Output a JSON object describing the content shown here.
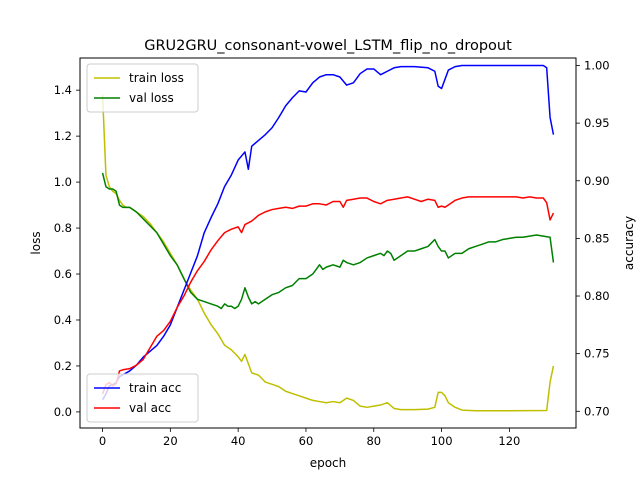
{
  "chart_data": {
    "type": "line",
    "title": "GRU2GRU_consonant-vowel_LSTM_flip_no_dropout",
    "xlabel": "epoch",
    "ylabel_left": "loss",
    "ylabel_right": "accuracy",
    "xlim": [
      -6.65,
      139.65
    ],
    "ylim_left": [
      -0.07,
      1.54
    ],
    "ylim_right": [
      0.6855,
      1.0065
    ],
    "x_ticks": [
      0,
      20,
      40,
      60,
      80,
      100,
      120
    ],
    "y_ticks_left": [
      0.0,
      0.2,
      0.4,
      0.6,
      0.8,
      1.0,
      1.2,
      1.4
    ],
    "y_ticks_right": [
      0.7,
      0.75,
      0.8,
      0.85,
      0.9,
      0.95,
      1.0
    ],
    "grid": false,
    "legend_left_placement": "upper-left",
    "legend_right_placement": "lower-left",
    "series": [
      {
        "name": "train loss",
        "axis": "left",
        "color": "#bfbf00",
        "points": [
          [
            0,
            1.38
          ],
          [
            1,
            1.03
          ],
          [
            2,
            0.98
          ],
          [
            3,
            0.96
          ],
          [
            4,
            0.95
          ],
          [
            5,
            0.92
          ],
          [
            6,
            0.9
          ],
          [
            7,
            0.89
          ],
          [
            8,
            0.89
          ],
          [
            9,
            0.88
          ],
          [
            10,
            0.87
          ],
          [
            12,
            0.85
          ],
          [
            14,
            0.82
          ],
          [
            16,
            0.78
          ],
          [
            18,
            0.74
          ],
          [
            20,
            0.69
          ],
          [
            22,
            0.64
          ],
          [
            24,
            0.58
          ],
          [
            26,
            0.53
          ],
          [
            28,
            0.49
          ],
          [
            30,
            0.43
          ],
          [
            32,
            0.38
          ],
          [
            34,
            0.34
          ],
          [
            36,
            0.29
          ],
          [
            38,
            0.27
          ],
          [
            40,
            0.24
          ],
          [
            41,
            0.22
          ],
          [
            42,
            0.25
          ],
          [
            43,
            0.21
          ],
          [
            44,
            0.17
          ],
          [
            46,
            0.16
          ],
          [
            48,
            0.13
          ],
          [
            50,
            0.12
          ],
          [
            52,
            0.11
          ],
          [
            54,
            0.09
          ],
          [
            56,
            0.08
          ],
          [
            58,
            0.07
          ],
          [
            60,
            0.06
          ],
          [
            62,
            0.05
          ],
          [
            64,
            0.045
          ],
          [
            66,
            0.04
          ],
          [
            68,
            0.045
          ],
          [
            70,
            0.04
          ],
          [
            72,
            0.06
          ],
          [
            74,
            0.05
          ],
          [
            76,
            0.025
          ],
          [
            78,
            0.02
          ],
          [
            80,
            0.025
          ],
          [
            82,
            0.03
          ],
          [
            84,
            0.04
          ],
          [
            86,
            0.015
          ],
          [
            88,
            0.01
          ],
          [
            92,
            0.01
          ],
          [
            96,
            0.012
          ],
          [
            98,
            0.02
          ],
          [
            99,
            0.085
          ],
          [
            100,
            0.085
          ],
          [
            101,
            0.07
          ],
          [
            102,
            0.04
          ],
          [
            104,
            0.02
          ],
          [
            106,
            0.008
          ],
          [
            110,
            0.005
          ],
          [
            120,
            0.005
          ],
          [
            131,
            0.006
          ],
          [
            132,
            0.13
          ],
          [
            133,
            0.2
          ]
        ]
      },
      {
        "name": "val loss",
        "axis": "left",
        "color": "#008000",
        "points": [
          [
            0,
            1.04
          ],
          [
            1,
            0.98
          ],
          [
            2,
            0.97
          ],
          [
            3,
            0.97
          ],
          [
            4,
            0.96
          ],
          [
            5,
            0.9
          ],
          [
            6,
            0.89
          ],
          [
            8,
            0.89
          ],
          [
            10,
            0.87
          ],
          [
            12,
            0.84
          ],
          [
            14,
            0.81
          ],
          [
            16,
            0.78
          ],
          [
            18,
            0.73
          ],
          [
            20,
            0.68
          ],
          [
            22,
            0.64
          ],
          [
            24,
            0.58
          ],
          [
            26,
            0.52
          ],
          [
            28,
            0.49
          ],
          [
            30,
            0.48
          ],
          [
            32,
            0.47
          ],
          [
            34,
            0.46
          ],
          [
            35,
            0.45
          ],
          [
            36,
            0.47
          ],
          [
            37,
            0.46
          ],
          [
            38,
            0.46
          ],
          [
            39,
            0.45
          ],
          [
            40,
            0.46
          ],
          [
            41,
            0.49
          ],
          [
            42,
            0.54
          ],
          [
            43,
            0.5
          ],
          [
            44,
            0.47
          ],
          [
            45,
            0.48
          ],
          [
            46,
            0.47
          ],
          [
            48,
            0.49
          ],
          [
            50,
            0.51
          ],
          [
            52,
            0.52
          ],
          [
            54,
            0.54
          ],
          [
            56,
            0.55
          ],
          [
            58,
            0.58
          ],
          [
            60,
            0.58
          ],
          [
            62,
            0.6
          ],
          [
            64,
            0.64
          ],
          [
            65,
            0.62
          ],
          [
            66,
            0.63
          ],
          [
            68,
            0.64
          ],
          [
            70,
            0.63
          ],
          [
            71,
            0.66
          ],
          [
            72,
            0.65
          ],
          [
            74,
            0.64
          ],
          [
            76,
            0.65
          ],
          [
            78,
            0.67
          ],
          [
            80,
            0.68
          ],
          [
            82,
            0.69
          ],
          [
            83,
            0.68
          ],
          [
            84,
            0.7
          ],
          [
            85,
            0.69
          ],
          [
            86,
            0.66
          ],
          [
            88,
            0.68
          ],
          [
            90,
            0.7
          ],
          [
            92,
            0.7
          ],
          [
            94,
            0.71
          ],
          [
            96,
            0.72
          ],
          [
            98,
            0.75
          ],
          [
            99,
            0.72
          ],
          [
            100,
            0.7
          ],
          [
            101,
            0.7
          ],
          [
            102,
            0.67
          ],
          [
            104,
            0.69
          ],
          [
            106,
            0.69
          ],
          [
            108,
            0.71
          ],
          [
            110,
            0.72
          ],
          [
            112,
            0.73
          ],
          [
            114,
            0.74
          ],
          [
            116,
            0.74
          ],
          [
            118,
            0.75
          ],
          [
            120,
            0.755
          ],
          [
            122,
            0.76
          ],
          [
            124,
            0.76
          ],
          [
            126,
            0.765
          ],
          [
            128,
            0.77
          ],
          [
            130,
            0.765
          ],
          [
            132,
            0.76
          ],
          [
            133,
            0.65
          ]
        ]
      },
      {
        "name": "train acc",
        "axis": "right",
        "color": "#0000ff",
        "points": [
          [
            0,
            0.71
          ],
          [
            1,
            0.715
          ],
          [
            2,
            0.722
          ],
          [
            3,
            0.723
          ],
          [
            4,
            0.725
          ],
          [
            5,
            0.73
          ],
          [
            8,
            0.735
          ],
          [
            10,
            0.74
          ],
          [
            12,
            0.747
          ],
          [
            14,
            0.752
          ],
          [
            16,
            0.757
          ],
          [
            18,
            0.765
          ],
          [
            20,
            0.775
          ],
          [
            22,
            0.79
          ],
          [
            24,
            0.805
          ],
          [
            26,
            0.82
          ],
          [
            28,
            0.835
          ],
          [
            30,
            0.855
          ],
          [
            32,
            0.868
          ],
          [
            34,
            0.88
          ],
          [
            36,
            0.895
          ],
          [
            38,
            0.905
          ],
          [
            40,
            0.918
          ],
          [
            42,
            0.925
          ],
          [
            43,
            0.91
          ],
          [
            44,
            0.93
          ],
          [
            46,
            0.935
          ],
          [
            48,
            0.94
          ],
          [
            50,
            0.946
          ],
          [
            52,
            0.955
          ],
          [
            54,
            0.965
          ],
          [
            56,
            0.972
          ],
          [
            58,
            0.978
          ],
          [
            60,
            0.977
          ],
          [
            62,
            0.985
          ],
          [
            64,
            0.99
          ],
          [
            66,
            0.992
          ],
          [
            68,
            0.992
          ],
          [
            70,
            0.99
          ],
          [
            72,
            0.983
          ],
          [
            74,
            0.985
          ],
          [
            76,
            0.993
          ],
          [
            78,
            0.997
          ],
          [
            80,
            0.997
          ],
          [
            82,
            0.992
          ],
          [
            84,
            0.995
          ],
          [
            86,
            0.998
          ],
          [
            88,
            0.999
          ],
          [
            92,
            0.999
          ],
          [
            96,
            0.998
          ],
          [
            98,
            0.995
          ],
          [
            99,
            0.982
          ],
          [
            100,
            0.98
          ],
          [
            101,
            0.988
          ],
          [
            102,
            0.996
          ],
          [
            104,
            0.999
          ],
          [
            106,
            1.0
          ],
          [
            110,
            1.0
          ],
          [
            120,
            1.0
          ],
          [
            130,
            1.0
          ],
          [
            131,
            0.998
          ],
          [
            132,
            0.955
          ],
          [
            133,
            0.94
          ]
        ]
      },
      {
        "name": "val acc",
        "axis": "right",
        "color": "#ff0000",
        "points": [
          [
            0,
            0.715
          ],
          [
            1,
            0.723
          ],
          [
            2,
            0.725
          ],
          [
            3,
            0.722
          ],
          [
            4,
            0.724
          ],
          [
            5,
            0.735
          ],
          [
            6,
            0.736
          ],
          [
            8,
            0.737
          ],
          [
            10,
            0.74
          ],
          [
            12,
            0.745
          ],
          [
            14,
            0.755
          ],
          [
            16,
            0.765
          ],
          [
            18,
            0.77
          ],
          [
            20,
            0.778
          ],
          [
            22,
            0.79
          ],
          [
            24,
            0.8
          ],
          [
            26,
            0.812
          ],
          [
            28,
            0.822
          ],
          [
            30,
            0.83
          ],
          [
            32,
            0.84
          ],
          [
            34,
            0.848
          ],
          [
            36,
            0.855
          ],
          [
            38,
            0.858
          ],
          [
            40,
            0.86
          ],
          [
            41,
            0.855
          ],
          [
            42,
            0.862
          ],
          [
            44,
            0.865
          ],
          [
            46,
            0.87
          ],
          [
            48,
            0.873
          ],
          [
            50,
            0.875
          ],
          [
            52,
            0.876
          ],
          [
            54,
            0.877
          ],
          [
            56,
            0.876
          ],
          [
            58,
            0.878
          ],
          [
            60,
            0.878
          ],
          [
            62,
            0.88
          ],
          [
            64,
            0.88
          ],
          [
            66,
            0.879
          ],
          [
            68,
            0.882
          ],
          [
            70,
            0.882
          ],
          [
            71,
            0.877
          ],
          [
            72,
            0.883
          ],
          [
            74,
            0.884
          ],
          [
            76,
            0.885
          ],
          [
            78,
            0.885
          ],
          [
            80,
            0.882
          ],
          [
            82,
            0.88
          ],
          [
            84,
            0.883
          ],
          [
            86,
            0.884
          ],
          [
            88,
            0.885
          ],
          [
            90,
            0.886
          ],
          [
            92,
            0.884
          ],
          [
            94,
            0.882
          ],
          [
            96,
            0.884
          ],
          [
            98,
            0.883
          ],
          [
            99,
            0.877
          ],
          [
            100,
            0.878
          ],
          [
            101,
            0.877
          ],
          [
            102,
            0.879
          ],
          [
            104,
            0.883
          ],
          [
            106,
            0.885
          ],
          [
            108,
            0.886
          ],
          [
            110,
            0.886
          ],
          [
            112,
            0.886
          ],
          [
            114,
            0.886
          ],
          [
            116,
            0.886
          ],
          [
            118,
            0.886
          ],
          [
            120,
            0.886
          ],
          [
            122,
            0.886
          ],
          [
            124,
            0.885
          ],
          [
            126,
            0.886
          ],
          [
            128,
            0.885
          ],
          [
            130,
            0.885
          ],
          [
            131,
            0.881
          ],
          [
            132,
            0.866
          ],
          [
            133,
            0.872
          ]
        ]
      }
    ]
  }
}
